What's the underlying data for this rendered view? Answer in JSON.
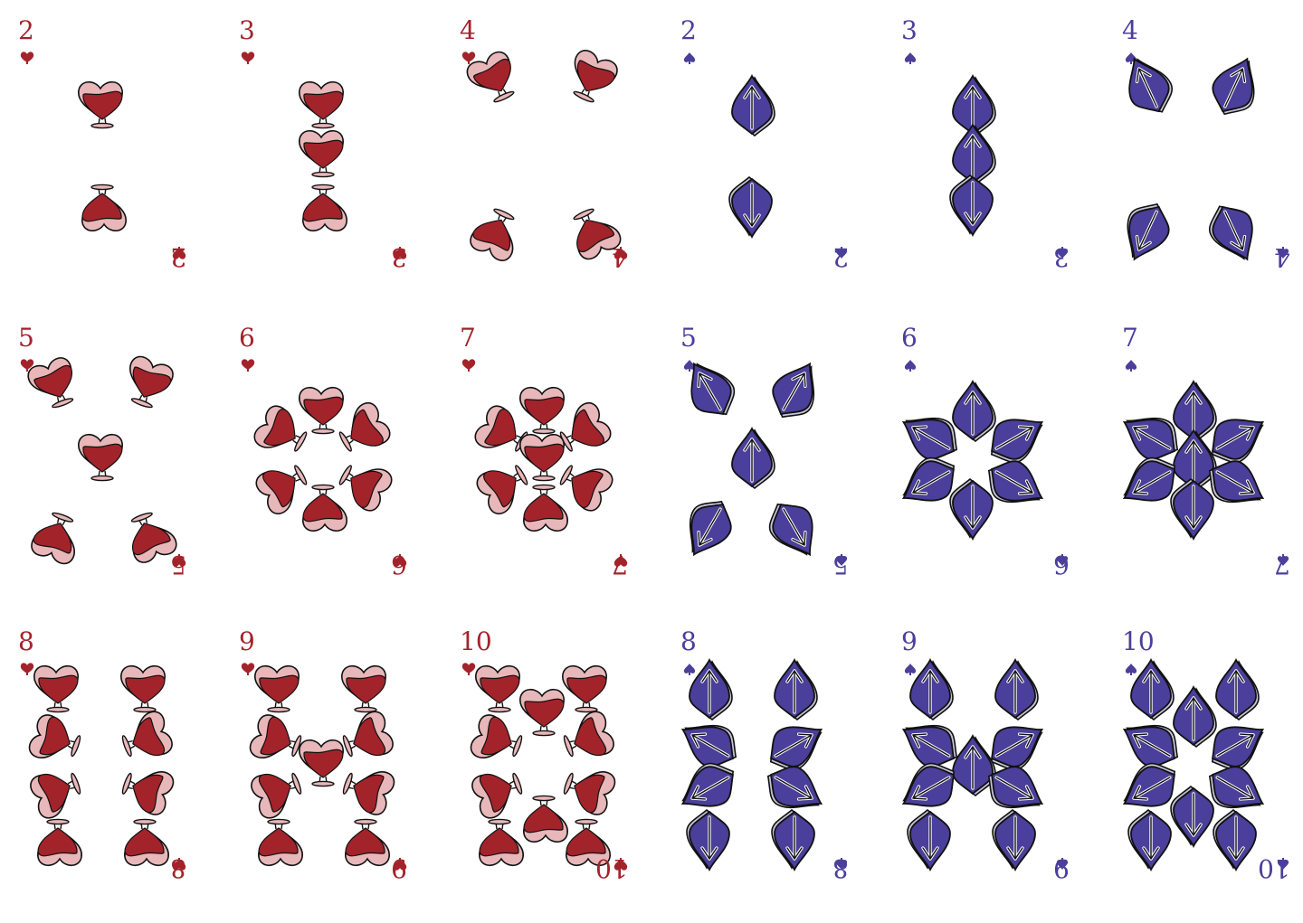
{
  "colors": {
    "hearts": "#a3232b",
    "hearts_light": "#e8b7b9",
    "spades": "#4a3f9a",
    "spades_light": "#c7c4d6",
    "outline": "#111111"
  },
  "icons": {
    "hearts": "heart-potion-icon",
    "spades": "spade-arrow-icon"
  },
  "rows": [
    [
      {
        "suit": "hearts",
        "rank": "2"
      },
      {
        "suit": "hearts",
        "rank": "3"
      },
      {
        "suit": "hearts",
        "rank": "4"
      },
      {
        "suit": "spades",
        "rank": "2"
      },
      {
        "suit": "spades",
        "rank": "3"
      },
      {
        "suit": "spades",
        "rank": "4"
      }
    ],
    [
      {
        "suit": "hearts",
        "rank": "5"
      },
      {
        "suit": "hearts",
        "rank": "6"
      },
      {
        "suit": "hearts",
        "rank": "7"
      },
      {
        "suit": "spades",
        "rank": "5"
      },
      {
        "suit": "spades",
        "rank": "6"
      },
      {
        "suit": "spades",
        "rank": "7"
      }
    ],
    [
      {
        "suit": "hearts",
        "rank": "8"
      },
      {
        "suit": "hearts",
        "rank": "9"
      },
      {
        "suit": "hearts",
        "rank": "10"
      },
      {
        "suit": "spades",
        "rank": "8"
      },
      {
        "suit": "spades",
        "rank": "9"
      },
      {
        "suit": "spades",
        "rank": "10"
      }
    ]
  ]
}
